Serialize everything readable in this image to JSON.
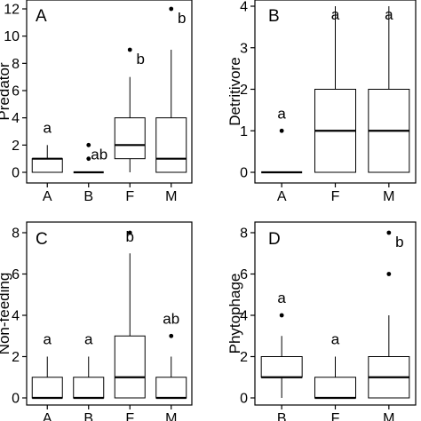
{
  "chart_data": [
    {
      "type": "boxplot",
      "panel": "A",
      "ylabel": "Predator",
      "categories": [
        "A",
        "B",
        "F",
        "M"
      ],
      "yticks": [
        0,
        2,
        4,
        6,
        8,
        10,
        12
      ],
      "ylim": [
        -0.6,
        13.4
      ],
      "groups": [
        {
          "name": "A",
          "min": 0,
          "q1": 0,
          "median": 1,
          "q3": 1,
          "max": 2,
          "outliers": [],
          "letter": "a"
        },
        {
          "name": "B",
          "min": 0,
          "q1": 0,
          "median": 0,
          "q3": 0,
          "max": 0,
          "outliers": [
            1,
            2
          ],
          "letter": "ab"
        },
        {
          "name": "F",
          "min": 0,
          "q1": 1,
          "median": 2,
          "q3": 4,
          "max": 7,
          "outliers": [
            9
          ],
          "letter": "b"
        },
        {
          "name": "M",
          "min": 0,
          "q1": 0,
          "median": 1,
          "q3": 4,
          "max": 9,
          "outliers": [
            12
          ],
          "letter": "b"
        }
      ]
    },
    {
      "type": "boxplot",
      "panel": "B",
      "ylabel": "Detritivore",
      "categories": [
        "A",
        "F",
        "M"
      ],
      "yticks": [
        0,
        1,
        2,
        3,
        4
      ],
      "ylim": [
        -0.2,
        4.2
      ],
      "groups": [
        {
          "name": "A",
          "min": 0,
          "q1": 0,
          "median": 0,
          "q3": 0,
          "max": 0,
          "outliers": [
            1
          ],
          "letter": "a"
        },
        {
          "name": "F",
          "min": 0,
          "q1": 0,
          "median": 1,
          "q3": 2,
          "max": 4,
          "outliers": [],
          "letter": "a"
        },
        {
          "name": "M",
          "min": 0,
          "q1": 0,
          "median": 1,
          "q3": 2,
          "max": 4,
          "outliers": [],
          "letter": "a"
        }
      ]
    },
    {
      "type": "boxplot",
      "panel": "C",
      "ylabel": "Non-feeding",
      "categories": [
        "A",
        "B",
        "F",
        "M"
      ],
      "yticks": [
        0,
        2,
        4,
        6,
        8
      ],
      "ylim": [
        -0.4,
        8.3
      ],
      "groups": [
        {
          "name": "A",
          "min": 0,
          "q1": 0,
          "median": 0,
          "q3": 1,
          "max": 2,
          "outliers": [],
          "letter": "a"
        },
        {
          "name": "B",
          "min": 0,
          "q1": 0,
          "median": 0,
          "q3": 1,
          "max": 2,
          "outliers": [],
          "letter": "a"
        },
        {
          "name": "F",
          "min": 0,
          "q1": 0,
          "median": 1,
          "q3": 3,
          "max": 7,
          "outliers": [
            8
          ],
          "letter": "b"
        },
        {
          "name": "M",
          "min": 0,
          "q1": 0,
          "median": 0,
          "q3": 1,
          "max": 2,
          "outliers": [
            3
          ],
          "letter": "ab"
        }
      ]
    },
    {
      "type": "boxplot",
      "panel": "D",
      "ylabel": "Phytophage",
      "categories": [
        "B",
        "F",
        "M"
      ],
      "yticks": [
        0,
        2,
        4,
        6,
        8
      ],
      "ylim": [
        -0.4,
        8.3
      ],
      "groups": [
        {
          "name": "B",
          "min": 0,
          "q1": 1,
          "median": 1,
          "q3": 2,
          "max": 3,
          "outliers": [
            4
          ],
          "letter": "a"
        },
        {
          "name": "F",
          "min": 0,
          "q1": 0,
          "median": 0,
          "q3": 1,
          "max": 2,
          "outliers": [],
          "letter": "a"
        },
        {
          "name": "M",
          "min": 0,
          "q1": 0,
          "median": 1,
          "q3": 2,
          "max": 4,
          "outliers": [
            6,
            8
          ],
          "letter": "b"
        }
      ]
    }
  ]
}
